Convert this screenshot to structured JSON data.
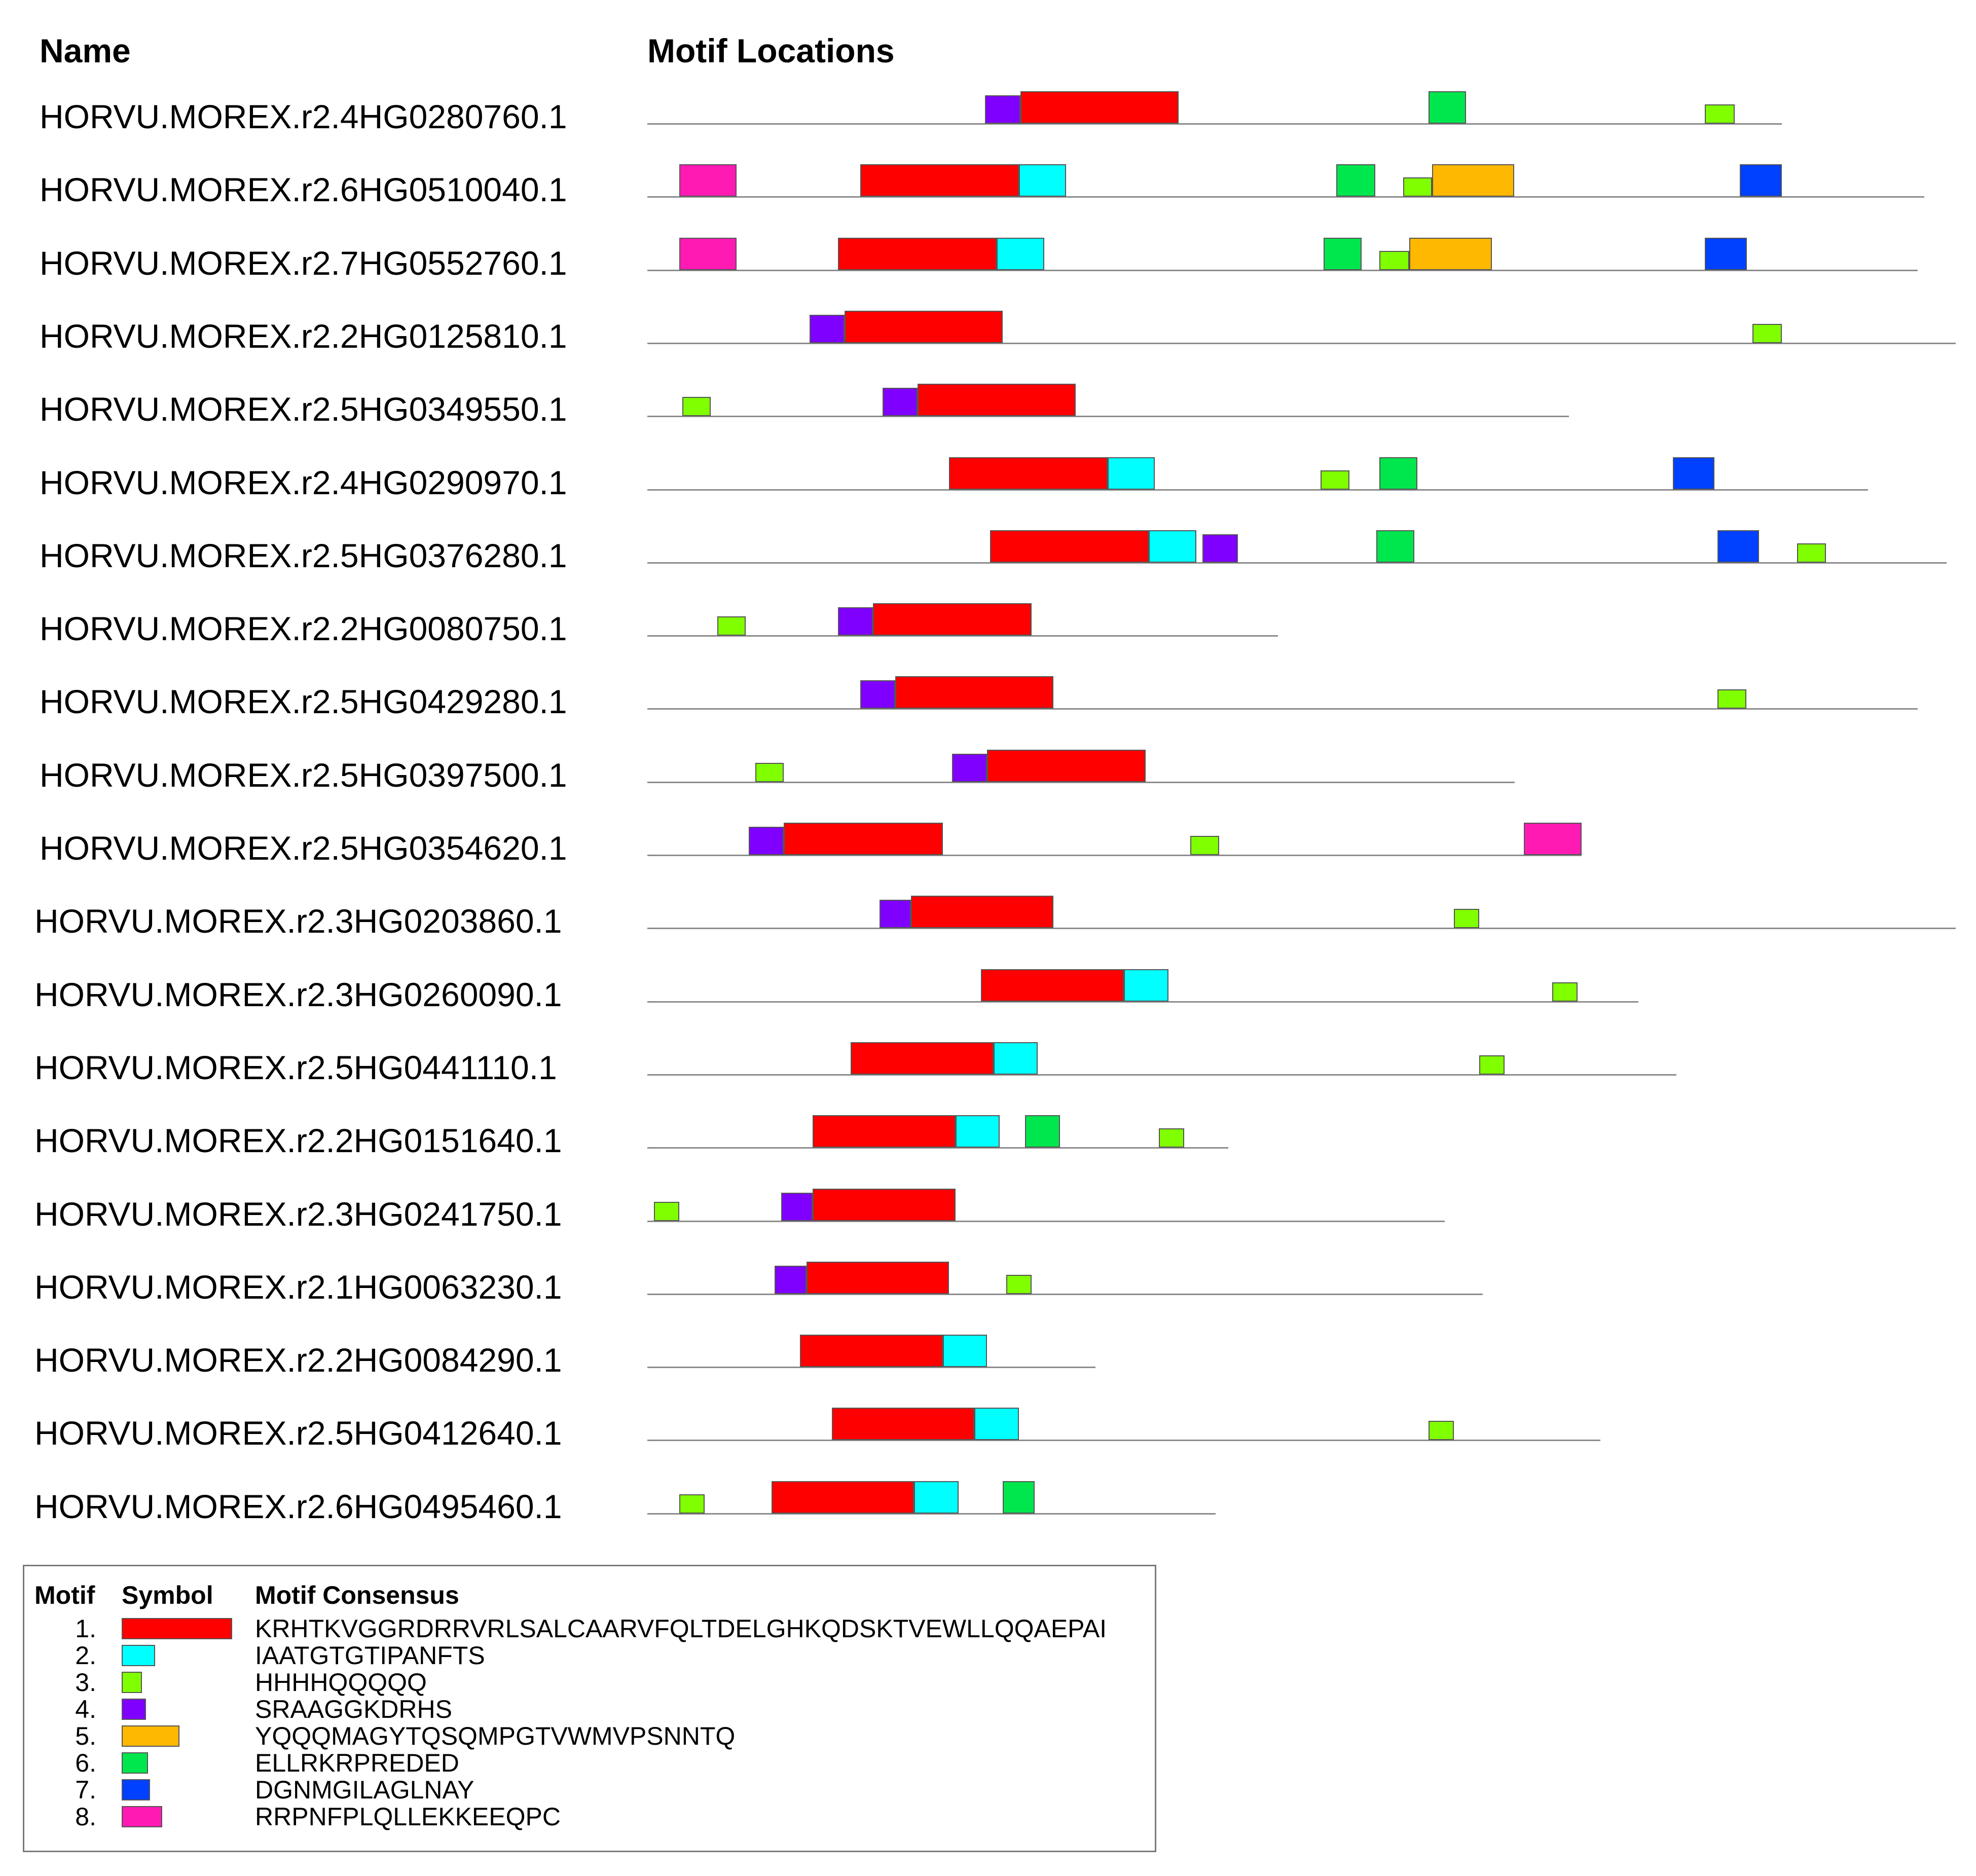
{
  "headers": {
    "name": "Name",
    "locations": "Motif Locations"
  },
  "colors": {
    "1": "#ff0000",
    "2": "#00ffff",
    "3": "#80ff00",
    "4": "#8000ff",
    "5": "#ffb800",
    "6": "#00e64d",
    "7": "#0040ff",
    "8": "#ff1ab3"
  },
  "chart_data": {
    "type": "motif-diagram",
    "sequences": [
      {
        "name": "HORVU.MOREX.r2.4HG0280760.1",
        "length": 1790,
        "motifs": [
          {
            "motif": 4,
            "start": 533,
            "end": 589
          },
          {
            "motif": 1,
            "start": 589,
            "end": 838
          },
          {
            "motif": 6,
            "start": 1233,
            "end": 1292
          },
          {
            "motif": 3,
            "start": 1669,
            "end": 1716
          }
        ]
      },
      {
        "name": "HORVU.MOREX.r2.6HG0510040.1",
        "length": 2015,
        "motifs": [
          {
            "motif": 8,
            "start": 50,
            "end": 141
          },
          {
            "motif": 1,
            "start": 336,
            "end": 586
          },
          {
            "motif": 2,
            "start": 586,
            "end": 661
          },
          {
            "motif": 6,
            "start": 1087,
            "end": 1149
          },
          {
            "motif": 3,
            "start": 1193,
            "end": 1238
          },
          {
            "motif": 5,
            "start": 1238,
            "end": 1368
          },
          {
            "motif": 7,
            "start": 1724,
            "end": 1790
          }
        ]
      },
      {
        "name": "HORVU.MOREX.r2.7HG0552760.1",
        "length": 2005,
        "motifs": [
          {
            "motif": 8,
            "start": 50,
            "end": 141
          },
          {
            "motif": 1,
            "start": 301,
            "end": 551
          },
          {
            "motif": 2,
            "start": 551,
            "end": 626
          },
          {
            "motif": 6,
            "start": 1067,
            "end": 1127
          },
          {
            "motif": 3,
            "start": 1155,
            "end": 1202
          },
          {
            "motif": 5,
            "start": 1202,
            "end": 1333
          },
          {
            "motif": 7,
            "start": 1669,
            "end": 1735
          }
        ]
      },
      {
        "name": "HORVU.MOREX.r2.2HG0125810.1",
        "length": 2065,
        "motifs": [
          {
            "motif": 4,
            "start": 256,
            "end": 311
          },
          {
            "motif": 1,
            "start": 311,
            "end": 561
          },
          {
            "motif": 3,
            "start": 1744,
            "end": 1790
          }
        ]
      },
      {
        "name": "HORVU.MOREX.r2.5HG0349550.1",
        "length": 1454,
        "motifs": [
          {
            "motif": 3,
            "start": 55,
            "end": 100
          },
          {
            "motif": 4,
            "start": 371,
            "end": 426
          },
          {
            "motif": 1,
            "start": 426,
            "end": 676
          }
        ]
      },
      {
        "name": "HORVU.MOREX.r2.4HG0290970.1",
        "length": 1926,
        "motifs": [
          {
            "motif": 1,
            "start": 476,
            "end": 726
          },
          {
            "motif": 2,
            "start": 726,
            "end": 801
          },
          {
            "motif": 3,
            "start": 1062,
            "end": 1108
          },
          {
            "motif": 6,
            "start": 1155,
            "end": 1215
          },
          {
            "motif": 7,
            "start": 1618,
            "end": 1684
          }
        ]
      },
      {
        "name": "HORVU.MOREX.r2.5HG0376280.1",
        "length": 2050,
        "motifs": [
          {
            "motif": 1,
            "start": 541,
            "end": 791
          },
          {
            "motif": 2,
            "start": 791,
            "end": 866
          },
          {
            "motif": 4,
            "start": 876,
            "end": 932
          },
          {
            "motif": 6,
            "start": 1150,
            "end": 1210
          },
          {
            "motif": 7,
            "start": 1689,
            "end": 1754
          },
          {
            "motif": 3,
            "start": 1814,
            "end": 1860
          }
        ]
      },
      {
        "name": "HORVU.MOREX.r2.2HG0080750.1",
        "length": 995,
        "motifs": [
          {
            "motif": 3,
            "start": 110,
            "end": 155
          },
          {
            "motif": 4,
            "start": 301,
            "end": 356
          },
          {
            "motif": 1,
            "start": 356,
            "end": 606
          }
        ]
      },
      {
        "name": "HORVU.MOREX.r2.5HG0429280.1",
        "length": 2005,
        "motifs": [
          {
            "motif": 4,
            "start": 336,
            "end": 391
          },
          {
            "motif": 1,
            "start": 391,
            "end": 641
          },
          {
            "motif": 3,
            "start": 1689,
            "end": 1734
          }
        ]
      },
      {
        "name": "HORVU.MOREX.r2.5HG0397500.1",
        "length": 1369,
        "motifs": [
          {
            "motif": 3,
            "start": 170,
            "end": 215
          },
          {
            "motif": 4,
            "start": 481,
            "end": 536
          },
          {
            "motif": 1,
            "start": 536,
            "end": 786
          }
        ]
      },
      {
        "name": "HORVU.MOREX.r2.5HG0354620.1",
        "length": 1474,
        "motifs": [
          {
            "motif": 4,
            "start": 160,
            "end": 215
          },
          {
            "motif": 1,
            "start": 215,
            "end": 466
          },
          {
            "motif": 3,
            "start": 857,
            "end": 902
          },
          {
            "motif": 8,
            "start": 1383,
            "end": 1474
          }
        ]
      },
      {
        "name": "HORVU.MOREX.r2.3HG0203860.1",
        "length": 2065,
        "motifs": [
          {
            "motif": 4,
            "start": 366,
            "end": 416
          },
          {
            "motif": 1,
            "start": 416,
            "end": 641
          },
          {
            "motif": 3,
            "start": 1273,
            "end": 1313
          }
        ]
      },
      {
        "name": "HORVU.MOREX.r2.3HG0260090.1",
        "length": 1564,
        "motifs": [
          {
            "motif": 1,
            "start": 526,
            "end": 752
          },
          {
            "motif": 2,
            "start": 752,
            "end": 822
          },
          {
            "motif": 3,
            "start": 1428,
            "end": 1468
          }
        ]
      },
      {
        "name": "HORVU.MOREX.r2.5HG0441110.1",
        "length": 1624,
        "motifs": [
          {
            "motif": 1,
            "start": 321,
            "end": 546
          },
          {
            "motif": 2,
            "start": 546,
            "end": 616
          },
          {
            "motif": 3,
            "start": 1313,
            "end": 1353
          }
        ]
      },
      {
        "name": "HORVU.MOREX.r2.2HG0151640.1",
        "length": 917,
        "motifs": [
          {
            "motif": 1,
            "start": 261,
            "end": 486
          },
          {
            "motif": 2,
            "start": 486,
            "end": 556
          },
          {
            "motif": 6,
            "start": 596,
            "end": 651
          },
          {
            "motif": 3,
            "start": 807,
            "end": 847
          }
        ]
      },
      {
        "name": "HORVU.MOREX.r2.3HG0241750.1",
        "length": 1258,
        "motifs": [
          {
            "motif": 3,
            "start": 10,
            "end": 50
          },
          {
            "motif": 4,
            "start": 211,
            "end": 261
          },
          {
            "motif": 1,
            "start": 261,
            "end": 486
          }
        ]
      },
      {
        "name": "HORVU.MOREX.r2.1HG0063230.1",
        "length": 1318,
        "motifs": [
          {
            "motif": 4,
            "start": 201,
            "end": 251
          },
          {
            "motif": 1,
            "start": 251,
            "end": 476
          },
          {
            "motif": 3,
            "start": 566,
            "end": 606
          }
        ]
      },
      {
        "name": "HORVU.MOREX.r2.2HG0084290.1",
        "length": 707,
        "motifs": [
          {
            "motif": 1,
            "start": 241,
            "end": 466
          },
          {
            "motif": 2,
            "start": 466,
            "end": 536
          }
        ]
      },
      {
        "name": "HORVU.MOREX.r2.5HG0412640.1",
        "length": 1504,
        "motifs": [
          {
            "motif": 1,
            "start": 291,
            "end": 516
          },
          {
            "motif": 2,
            "start": 516,
            "end": 586
          },
          {
            "motif": 3,
            "start": 1233,
            "end": 1273
          }
        ]
      },
      {
        "name": "HORVU.MOREX.r2.6HG0495460.1",
        "length": 897,
        "motifs": [
          {
            "motif": 3,
            "start": 50,
            "end": 90
          },
          {
            "motif": 1,
            "start": 196,
            "end": 421
          },
          {
            "motif": 2,
            "start": 421,
            "end": 491
          },
          {
            "motif": 6,
            "start": 561,
            "end": 611
          }
        ]
      }
    ]
  },
  "legend": {
    "headers": {
      "motif": "Motif",
      "symbol": "Symbol",
      "consensus": "Motif Consensus"
    },
    "items": [
      {
        "number": "1.",
        "motif": 1,
        "consensus": "KRHTKVGGRDRRVRLSALCAARVFQLTDELGHKQDSKTVEWLLQQAEPAI"
      },
      {
        "number": "2.",
        "motif": 2,
        "consensus": "IAATGTGTIPANFTS"
      },
      {
        "number": "3.",
        "motif": 3,
        "consensus": "HHHHQQQQQ"
      },
      {
        "number": "4.",
        "motif": 4,
        "consensus": "SRAAGGKDRHS"
      },
      {
        "number": "5.",
        "motif": 5,
        "consensus": "YQQQMAGYTQSQMPGTVWMVPSNNTQ"
      },
      {
        "number": "6.",
        "motif": 6,
        "consensus": "ELLRKRPREDED"
      },
      {
        "number": "7.",
        "motif": 7,
        "consensus": "DGNMGILAGLNAY"
      },
      {
        "number": "8.",
        "motif": 8,
        "consensus": "RRPNFPLQLLEKKEEQPC"
      }
    ]
  }
}
